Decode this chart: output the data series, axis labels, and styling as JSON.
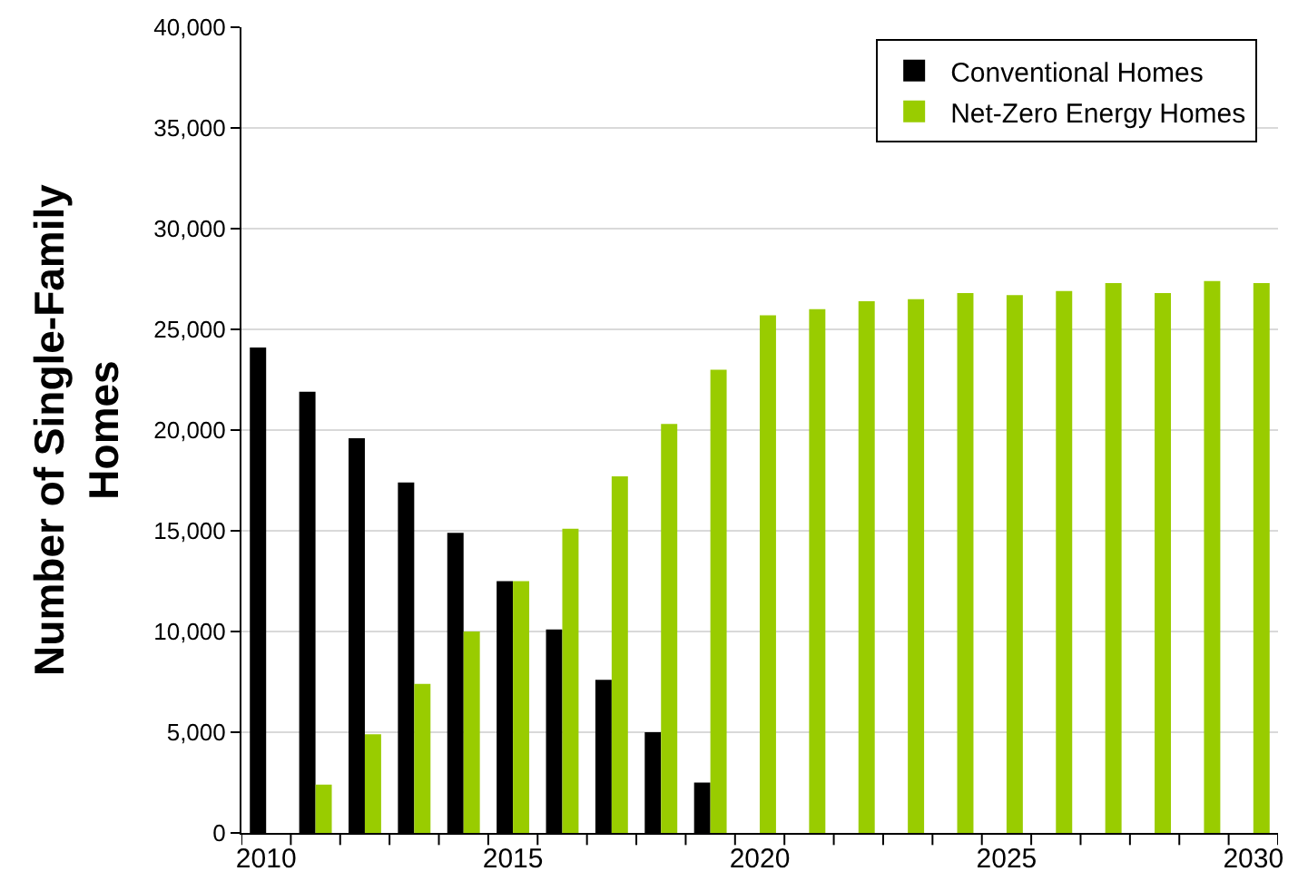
{
  "chart_data": {
    "type": "bar",
    "ylabel": "Number of Single-Family\nHomes",
    "categories": [
      "2010",
      null,
      null,
      null,
      null,
      "2015",
      null,
      null,
      null,
      null,
      "2020",
      null,
      null,
      null,
      null,
      "2025",
      null,
      null,
      null,
      null,
      "2030"
    ],
    "series": [
      {
        "name": "Conventional Homes",
        "color": "#000000",
        "values": [
          24100,
          21900,
          19600,
          17400,
          14900,
          12500,
          10100,
          7600,
          5000,
          2500,
          null,
          null,
          null,
          null,
          null,
          null,
          null,
          null,
          null,
          null,
          null
        ]
      },
      {
        "name": "Net-Zero Energy Homes",
        "color": "#99cc00",
        "values": [
          null,
          2400,
          4900,
          7400,
          10000,
          12500,
          15100,
          17700,
          20300,
          23000,
          25700,
          26000,
          26400,
          26500,
          26800,
          26700,
          26900,
          27300,
          26800,
          27400,
          27300
        ]
      }
    ],
    "ylim": [
      0,
      40000
    ],
    "yticks": [
      0,
      {
        "value": 5000,
        "label": "5,000"
      },
      {
        "value": 10000,
        "label": "10,000"
      },
      {
        "value": 15000,
        "label": "15,000"
      },
      {
        "value": 20000,
        "label": "20,000"
      },
      {
        "value": 25000,
        "label": "25,000"
      },
      {
        "value": 30000,
        "label": "30,000"
      },
      {
        "value": 35000,
        "label": "35,000"
      },
      {
        "value": 40000,
        "label": "40,000"
      }
    ],
    "grid": "y",
    "legend": "top right"
  }
}
